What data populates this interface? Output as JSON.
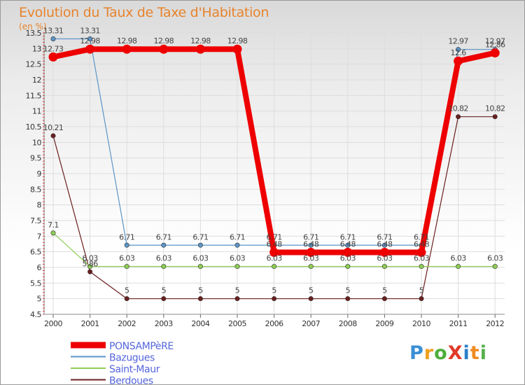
{
  "title": "Evolution du Taux de Taxe d'Habitation",
  "unit_label": "(en %)",
  "logo_text": "ProXiti",
  "colors": {
    "title": "#e8832b",
    "axis_text": "#333333",
    "grid": "#dddddd",
    "tick_red": "#ff0000"
  },
  "chart_data": {
    "type": "line",
    "title": "Evolution du Taux de Taxe d'Habitation",
    "xlabel": "",
    "ylabel": "(en %)",
    "x": [
      "2000",
      "2001",
      "2002",
      "2003",
      "2004",
      "2005",
      "2006",
      "2007",
      "2008",
      "2009",
      "2010",
      "2011",
      "2012"
    ],
    "ylim": [
      4.5,
      13.5
    ],
    "yticks": [
      "4.5",
      "5",
      "5.5",
      "6",
      "6.5",
      "7",
      "7.5",
      "8",
      "8.5",
      "9",
      "9.5",
      "10",
      "10.5",
      "11",
      "11.5",
      "12",
      "12.5",
      "13",
      "13.5"
    ],
    "grid": true,
    "legend_position": "bottom-left",
    "series": [
      {
        "name": "PONSAMPèRE",
        "color": "#ee0000",
        "thick": true,
        "values": [
          12.73,
          12.98,
          12.98,
          12.98,
          12.98,
          12.98,
          6.48,
          6.48,
          6.48,
          6.48,
          6.48,
          12.6,
          12.86
        ],
        "labels": [
          "12.73",
          "12.98",
          "12.98",
          "12.98",
          "12.98",
          "12.98",
          "6.48",
          "6.48",
          "6.48",
          "6.48",
          "6.48",
          "12.6",
          "12.86"
        ]
      },
      {
        "name": "Bazugues",
        "color": "#5b95c7",
        "values": [
          13.31,
          13.31,
          6.71,
          6.71,
          6.71,
          6.71,
          6.71,
          6.71,
          6.71,
          6.71,
          6.71,
          12.97,
          12.97
        ],
        "labels": [
          "13.31",
          "13.31",
          "6.71",
          "6.71",
          "6.71",
          "6.71",
          "6.71",
          "6.71",
          "6.71",
          "6.71",
          "6.71",
          "12.97",
          "12.97"
        ]
      },
      {
        "name": "Saint-Maur",
        "color": "#8fce55",
        "values": [
          7.1,
          6.03,
          6.03,
          6.03,
          6.03,
          6.03,
          6.03,
          6.03,
          6.03,
          6.03,
          6.03,
          6.03,
          6.03
        ],
        "labels": [
          "7.1",
          "6.03",
          "6.03",
          "6.03",
          "6.03",
          "6.03",
          "6.03",
          "6.03",
          "6.03",
          "6.03",
          "6.03",
          "6.03",
          "6.03"
        ]
      },
      {
        "name": "Berdoues",
        "color": "#6b1f1f",
        "values": [
          10.21,
          5.86,
          5,
          5,
          5,
          5,
          5,
          5,
          5,
          5,
          5,
          10.82,
          10.82
        ],
        "labels": [
          "10.21",
          "5.86",
          "5",
          "5",
          "5",
          "5",
          "5",
          "5",
          "5",
          "5",
          "5",
          "10.82",
          "10.82"
        ]
      }
    ]
  }
}
